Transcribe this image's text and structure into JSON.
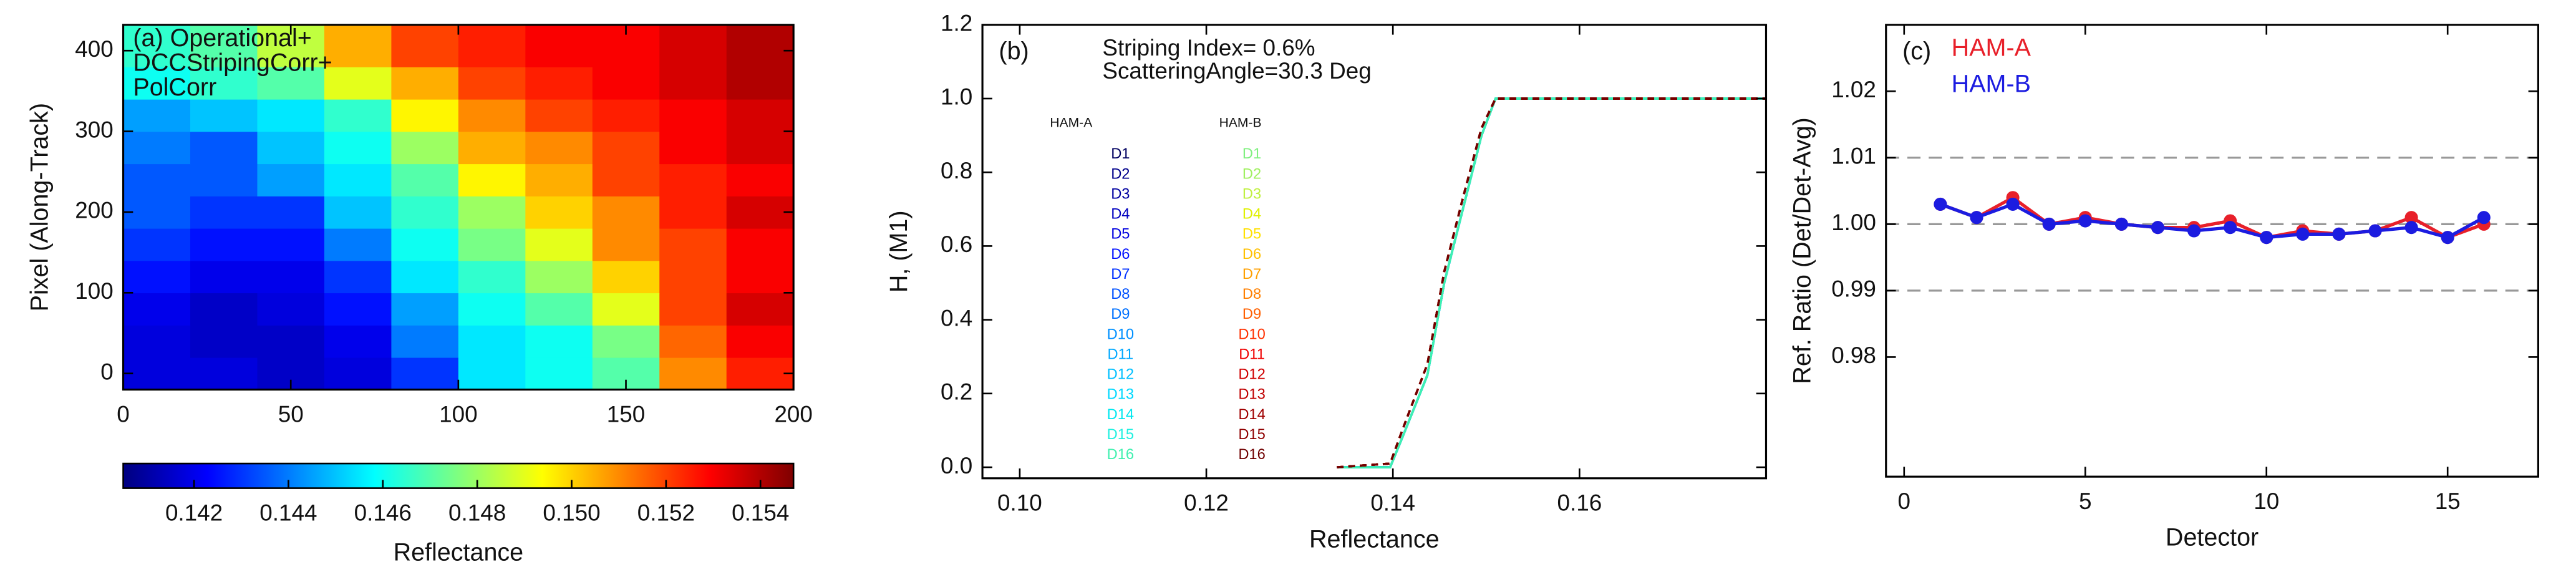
{
  "chart_data": [
    {
      "type": "heatmap",
      "annotation": [
        "(a) Operational+",
        "DCCStripingCorr+",
        "PolCorr"
      ],
      "ylabel": "Pixel (Along-Track)",
      "xlim": [
        0,
        200
      ],
      "xticks": [
        0,
        50,
        100,
        150,
        200
      ],
      "ylim": [
        -20,
        432
      ],
      "yticks": [
        0,
        100,
        200,
        300,
        400
      ],
      "x_bins": [
        0,
        20,
        40,
        60,
        80,
        100,
        120,
        140,
        160,
        180,
        200
      ],
      "y_bins": [
        -20,
        20,
        60,
        100,
        140,
        180,
        220,
        260,
        300,
        340,
        380,
        432
      ],
      "z": [
        [
          0.1418,
          0.1418,
          0.1415,
          0.1418,
          0.143,
          0.1455,
          0.146,
          0.147,
          0.151,
          0.1525
        ],
        [
          0.1418,
          0.1415,
          0.1415,
          0.142,
          0.144,
          0.1455,
          0.146,
          0.1475,
          0.1515,
          0.153
        ],
        [
          0.142,
          0.1415,
          0.1418,
          0.1425,
          0.1445,
          0.146,
          0.147,
          0.149,
          0.152,
          0.1535
        ],
        [
          0.1425,
          0.142,
          0.142,
          0.143,
          0.1455,
          0.1465,
          0.148,
          0.15,
          0.152,
          0.153
        ],
        [
          0.143,
          0.1425,
          0.1425,
          0.144,
          0.146,
          0.1475,
          0.149,
          0.151,
          0.152,
          0.153
        ],
        [
          0.1435,
          0.143,
          0.143,
          0.145,
          0.1465,
          0.148,
          0.15,
          0.151,
          0.1525,
          0.1535
        ],
        [
          0.1435,
          0.1435,
          0.1445,
          0.1455,
          0.147,
          0.1495,
          0.1505,
          0.152,
          0.1525,
          0.153
        ],
        [
          0.144,
          0.1435,
          0.145,
          0.146,
          0.148,
          0.1505,
          0.151,
          0.152,
          0.153,
          0.1535
        ],
        [
          0.1445,
          0.145,
          0.1455,
          0.1465,
          0.1495,
          0.151,
          0.152,
          0.1525,
          0.153,
          0.1535
        ],
        [
          0.146,
          0.1465,
          0.147,
          0.149,
          0.1505,
          0.152,
          0.1525,
          0.153,
          0.1535,
          0.154
        ],
        [
          0.1465,
          0.147,
          0.1485,
          0.1505,
          0.152,
          0.1525,
          0.153,
          0.153,
          0.1535,
          0.154
        ]
      ],
      "colormap": [
        "#00007f",
        "#0000ff",
        "#007fff",
        "#00ffff",
        "#7fff7f",
        "#ffff00",
        "#ff7f00",
        "#ff0000",
        "#7f0000"
      ],
      "colorbar": {
        "label": "Reflectance",
        "lim": [
          0.1405,
          0.1547
        ],
        "ticks": [
          0.142,
          0.144,
          0.146,
          0.148,
          {
            "value": 0.15,
            "label": "0.150"
          },
          0.152,
          0.154
        ]
      }
    },
    {
      "type": "line",
      "panel_label": "(b)",
      "annotation": [
        "Striping Index= 0.6%",
        "ScatteringAngle=30.3 Deg"
      ],
      "xlabel": "Reflectance",
      "ylabel": "H, (M1)",
      "xlim": [
        0.096,
        0.18
      ],
      "xticks": [
        {
          "value": 0.1,
          "label": "0.10"
        },
        0.12,
        0.14,
        0.16
      ],
      "ylim": [
        -0.03,
        1.2
      ],
      "yticks": [
        {
          "value": 0,
          "label": "0.0"
        },
        0.2,
        0.4,
        0.6,
        0.8,
        {
          "value": 1,
          "label": "1.0"
        },
        1.2
      ],
      "x": [
        0.134,
        0.1397,
        0.141,
        0.1437,
        0.1455,
        0.1475,
        0.1495,
        0.151,
        0.18
      ],
      "groups": [
        {
          "name": "HAM-A",
          "dashed": false,
          "series": [
            {
              "name": "D1",
              "color": "#000060",
              "values": [
                0,
                0,
                0.08,
                0.25,
                0.5,
                0.7,
                0.9,
                1,
                1
              ]
            },
            {
              "name": "D2",
              "color": "#00008b",
              "values": [
                0,
                0,
                0.08,
                0.25,
                0.5,
                0.7,
                0.9,
                1,
                1
              ]
            },
            {
              "name": "D3",
              "color": "#0000a0",
              "values": [
                0,
                0,
                0.08,
                0.25,
                0.5,
                0.7,
                0.9,
                1,
                1
              ]
            },
            {
              "name": "D4",
              "color": "#0000c0",
              "values": [
                0,
                0,
                0.08,
                0.25,
                0.5,
                0.7,
                0.9,
                1,
                1
              ]
            },
            {
              "name": "D5",
              "color": "#0000e0",
              "values": [
                0,
                0,
                0.08,
                0.25,
                0.5,
                0.7,
                0.9,
                1,
                1
              ]
            },
            {
              "name": "D6",
              "color": "#0010ff",
              "values": [
                0,
                0,
                0.08,
                0.25,
                0.5,
                0.7,
                0.9,
                1,
                1
              ]
            },
            {
              "name": "D7",
              "color": "#0030ff",
              "values": [
                0,
                0,
                0.08,
                0.25,
                0.5,
                0.7,
                0.9,
                1,
                1
              ]
            },
            {
              "name": "D8",
              "color": "#0050ff",
              "values": [
                0,
                0,
                0.08,
                0.25,
                0.5,
                0.7,
                0.9,
                1,
                1
              ]
            },
            {
              "name": "D9",
              "color": "#0070ff",
              "values": [
                0,
                0,
                0.08,
                0.25,
                0.5,
                0.7,
                0.9,
                1,
                1
              ]
            },
            {
              "name": "D10",
              "color": "#0090ff",
              "values": [
                0,
                0,
                0.08,
                0.25,
                0.5,
                0.7,
                0.9,
                1,
                1
              ]
            },
            {
              "name": "D11",
              "color": "#00a8ff",
              "values": [
                0,
                0,
                0.08,
                0.25,
                0.5,
                0.7,
                0.9,
                1,
                1
              ]
            },
            {
              "name": "D12",
              "color": "#00c0ff",
              "values": [
                0,
                0,
                0.08,
                0.25,
                0.5,
                0.7,
                0.9,
                1,
                1
              ]
            },
            {
              "name": "D13",
              "color": "#00d8ff",
              "values": [
                0,
                0,
                0.08,
                0.25,
                0.5,
                0.7,
                0.9,
                1,
                1
              ]
            },
            {
              "name": "D14",
              "color": "#00e8f0",
              "values": [
                0,
                0,
                0.08,
                0.25,
                0.5,
                0.7,
                0.9,
                1,
                1
              ]
            },
            {
              "name": "D15",
              "color": "#20f0e0",
              "values": [
                0,
                0,
                0.08,
                0.25,
                0.5,
                0.7,
                0.9,
                1,
                1
              ]
            },
            {
              "name": "D16",
              "color": "#40f0b0",
              "values": [
                0,
                0,
                0.08,
                0.25,
                0.5,
                0.7,
                0.9,
                1,
                1
              ]
            }
          ]
        },
        {
          "name": "HAM-B",
          "dashed": true,
          "series": [
            {
              "name": "D1",
              "color": "#80f080",
              "values": [
                0,
                0.01,
                0.1,
                0.28,
                0.53,
                0.73,
                0.92,
                1,
                1
              ]
            },
            {
              "name": "D2",
              "color": "#a0f060",
              "values": [
                0,
                0.01,
                0.1,
                0.28,
                0.53,
                0.73,
                0.92,
                1,
                1
              ]
            },
            {
              "name": "D3",
              "color": "#c0f040",
              "values": [
                0,
                0.01,
                0.1,
                0.28,
                0.53,
                0.73,
                0.92,
                1,
                1
              ]
            },
            {
              "name": "D4",
              "color": "#e0f000",
              "values": [
                0,
                0.01,
                0.1,
                0.28,
                0.53,
                0.73,
                0.92,
                1,
                1
              ]
            },
            {
              "name": "D5",
              "color": "#ffe000",
              "values": [
                0,
                0.01,
                0.1,
                0.28,
                0.53,
                0.73,
                0.92,
                1,
                1
              ]
            },
            {
              "name": "D6",
              "color": "#ffc000",
              "values": [
                0,
                0.01,
                0.1,
                0.28,
                0.53,
                0.73,
                0.92,
                1,
                1
              ]
            },
            {
              "name": "D7",
              "color": "#ffa000",
              "values": [
                0,
                0.01,
                0.1,
                0.28,
                0.53,
                0.73,
                0.92,
                1,
                1
              ]
            },
            {
              "name": "D8",
              "color": "#ff8000",
              "values": [
                0,
                0.01,
                0.1,
                0.28,
                0.53,
                0.73,
                0.92,
                1,
                1
              ]
            },
            {
              "name": "D9",
              "color": "#ff6000",
              "values": [
                0,
                0.01,
                0.1,
                0.28,
                0.53,
                0.73,
                0.92,
                1,
                1
              ]
            },
            {
              "name": "D10",
              "color": "#ff3000",
              "values": [
                0,
                0.01,
                0.1,
                0.28,
                0.53,
                0.73,
                0.92,
                1,
                1
              ]
            },
            {
              "name": "D11",
              "color": "#f00000",
              "values": [
                0,
                0.01,
                0.1,
                0.28,
                0.53,
                0.73,
                0.92,
                1,
                1
              ]
            },
            {
              "name": "D12",
              "color": "#d00000",
              "values": [
                0,
                0.01,
                0.1,
                0.28,
                0.53,
                0.73,
                0.92,
                1,
                1
              ]
            },
            {
              "name": "D13",
              "color": "#c00000",
              "values": [
                0,
                0.01,
                0.1,
                0.28,
                0.53,
                0.73,
                0.92,
                1,
                1
              ]
            },
            {
              "name": "D14",
              "color": "#a00000",
              "values": [
                0,
                0.01,
                0.1,
                0.28,
                0.53,
                0.73,
                0.92,
                1,
                1
              ]
            },
            {
              "name": "D15",
              "color": "#900000",
              "values": [
                0,
                0.01,
                0.1,
                0.28,
                0.53,
                0.73,
                0.92,
                1,
                1
              ]
            },
            {
              "name": "D16",
              "color": "#700000",
              "values": [
                0,
                0.01,
                0.1,
                0.28,
                0.53,
                0.73,
                0.92,
                1,
                1
              ]
            }
          ]
        }
      ]
    },
    {
      "type": "line",
      "panel_label": "(c)",
      "xlabel": "Detector",
      "ylabel": "Ref. Ratio (Det/Det-Avg)",
      "xlim": [
        -0.5,
        17.5
      ],
      "xticks": [
        0,
        5,
        10,
        15
      ],
      "ylim": [
        0.962,
        1.03
      ],
      "yticks": [
        0.98,
        0.99,
        {
          "value": 1,
          "label": "1.00"
        },
        1.01,
        1.02
      ],
      "hlines": [
        0.99,
        1,
        1.01
      ],
      "markers": true,
      "x": [
        1,
        2,
        3,
        4,
        5,
        6,
        7,
        8,
        9,
        10,
        11,
        12,
        13,
        14,
        15,
        16
      ],
      "series": [
        {
          "name": "HAM-A",
          "color": "#e8202a",
          "values": [
            1.003,
            1.001,
            1.004,
            1.0,
            1.001,
            1.0,
            0.9995,
            0.9995,
            1.0005,
            0.998,
            0.999,
            0.9985,
            0.999,
            1.001,
            0.998,
            1.0
          ]
        },
        {
          "name": "HAM-B",
          "color": "#1c1ce0",
          "values": [
            1.003,
            1.001,
            1.003,
            1.0,
            1.0005,
            1.0,
            0.9995,
            0.999,
            0.9995,
            0.998,
            0.9985,
            0.9985,
            0.999,
            0.9995,
            0.998,
            1.001
          ]
        }
      ]
    }
  ]
}
